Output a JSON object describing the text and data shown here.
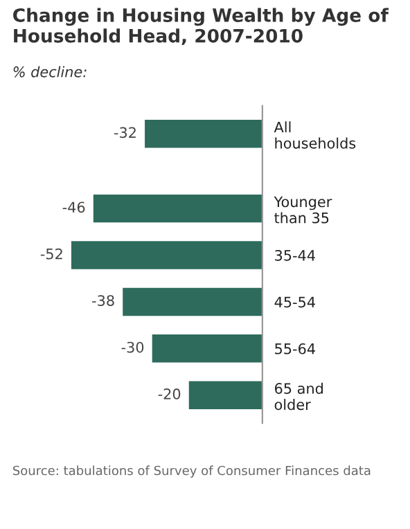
{
  "chart_data": {
    "type": "bar",
    "orientation": "horizontal",
    "title": "Change in Housing Wealth by Age of Household Head, 2007-2010",
    "subtitle": "% decline:",
    "categories": [
      "All\nhouseholds",
      "Younger\nthan 35",
      "35-44",
      "45-54",
      "55-64",
      "65 and\nolder"
    ],
    "values": [
      -32,
      -46,
      -52,
      -38,
      -30,
      -20
    ],
    "color": "#2e6b5c",
    "data_labels": true,
    "tick_labels": "y",
    "grid": false,
    "annotations": [
      "Source: tabulations of Survey of Consumer Finances data"
    ]
  }
}
